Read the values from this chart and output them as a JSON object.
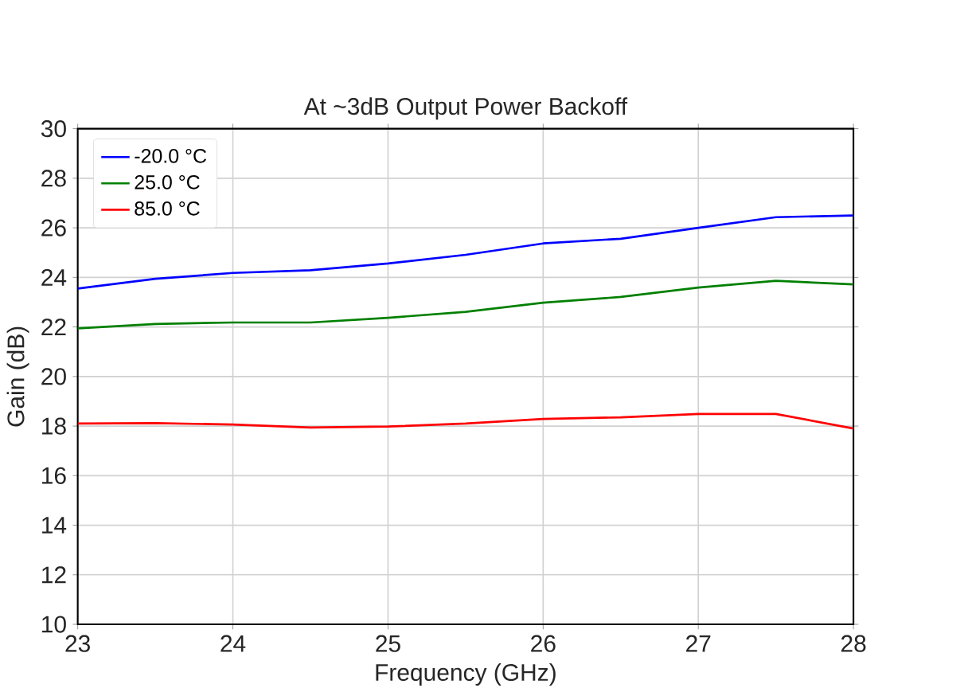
{
  "chart_data": {
    "type": "line",
    "title": "At ~3dB Output Power Backoff",
    "xlabel": "Frequency (GHz)",
    "ylabel": "Gain (dB)",
    "x": [
      23,
      23.5,
      24,
      24.5,
      25,
      25.5,
      26,
      26.5,
      27,
      27.5,
      28
    ],
    "series": [
      {
        "name": "-20.0 °C",
        "color": "#0000ff",
        "values": [
          23.55,
          23.94,
          24.18,
          24.29,
          24.56,
          24.91,
          25.37,
          25.56,
          26.0,
          26.43,
          26.5
        ]
      },
      {
        "name": "25.0 °C",
        "color": "#008000",
        "values": [
          21.94,
          22.12,
          22.18,
          22.18,
          22.37,
          22.61,
          22.98,
          23.21,
          23.59,
          23.86,
          23.72
        ]
      },
      {
        "name": "85.0 °C",
        "color": "#ff0000",
        "values": [
          18.1,
          18.12,
          18.06,
          17.94,
          17.98,
          18.1,
          18.29,
          18.35,
          18.49,
          18.49,
          17.9
        ]
      }
    ],
    "xlim": [
      23,
      28
    ],
    "ylim": [
      10,
      30
    ],
    "xticks": [
      23,
      24,
      25,
      26,
      27,
      28
    ],
    "yticks": [
      10,
      12,
      14,
      16,
      18,
      20,
      22,
      24,
      26,
      28,
      30
    ],
    "grid": true,
    "legend": "top left",
    "marker": "none",
    "line_style": "solid"
  }
}
